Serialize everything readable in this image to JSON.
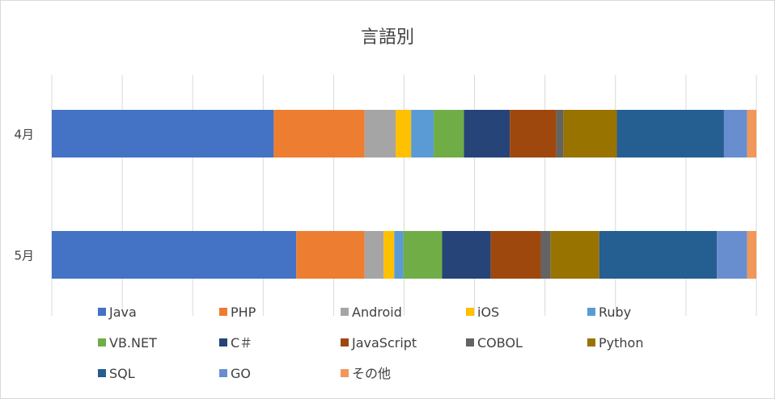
{
  "chart_data": {
    "type": "bar",
    "orientation": "horizontal",
    "stacked": "percent",
    "title": "言語別",
    "categories": [
      "4月",
      "5月"
    ],
    "grid": true,
    "legend_position": "bottom",
    "series": [
      {
        "name": "Java",
        "color": "#4472C4",
        "values": [
          31.5,
          34.7
        ]
      },
      {
        "name": "PHP",
        "color": "#ED7D31",
        "values": [
          12.9,
          9.7
        ]
      },
      {
        "name": "Android",
        "color": "#A5A5A5",
        "values": [
          4.4,
          2.7
        ]
      },
      {
        "name": "iOS",
        "color": "#FFC000",
        "values": [
          2.2,
          1.5
        ]
      },
      {
        "name": "Ruby",
        "color": "#5B9BD5",
        "values": [
          3.2,
          1.3
        ]
      },
      {
        "name": "VB.NET",
        "color": "#70AD47",
        "values": [
          4.3,
          5.5
        ]
      },
      {
        "name": "C＃",
        "color": "#264478",
        "values": [
          6.5,
          6.9
        ]
      },
      {
        "name": "JavaScript",
        "color": "#9E480E",
        "values": [
          6.6,
          7.1
        ]
      },
      {
        "name": "COBOL",
        "color": "#636363",
        "values": [
          1.0,
          1.4
        ]
      },
      {
        "name": "Python",
        "color": "#997300",
        "values": [
          7.6,
          6.9
        ]
      },
      {
        "name": "SQL",
        "color": "#255E91",
        "values": [
          15.2,
          16.7
        ]
      },
      {
        "name": "GO",
        "color": "#698ED0",
        "values": [
          3.3,
          4.3
        ]
      },
      {
        "name": "その他",
        "color": "#F1975A",
        "values": [
          1.3,
          1.3
        ]
      }
    ]
  }
}
